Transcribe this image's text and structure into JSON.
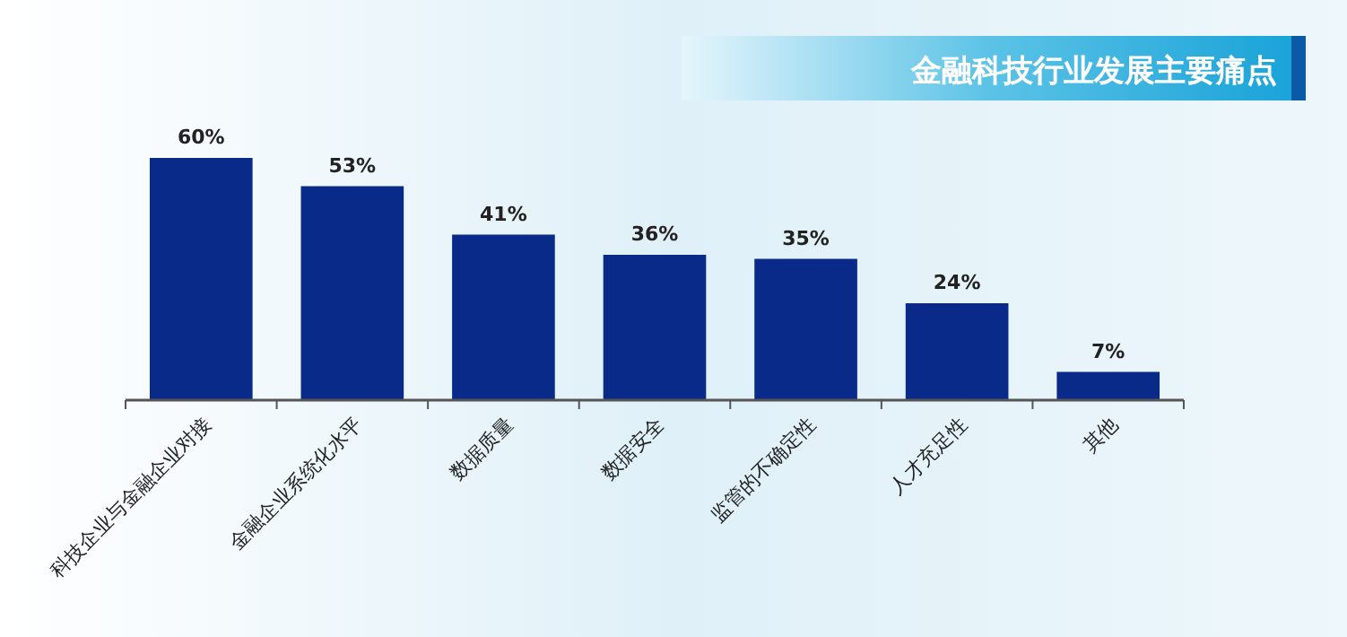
{
  "chart_data": {
    "type": "bar",
    "title": "金融科技行业发展主要痛点",
    "categories": [
      "科技企业与金融企业对接",
      "金融企业系统化水平",
      "数据质量",
      "数据安全",
      "监管的不确定性",
      "人才充足性",
      "其他"
    ],
    "values": [
      60,
      53,
      41,
      36,
      35,
      24,
      7
    ],
    "value_labels": [
      "60%",
      "53%",
      "41%",
      "36%",
      "35%",
      "24%",
      "7%"
    ],
    "color": "#0a2a8a"
  }
}
